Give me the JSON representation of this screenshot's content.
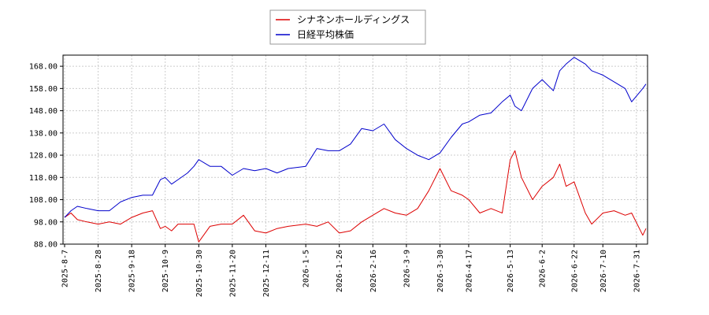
{
  "chart_data": {
    "type": "line",
    "title": "",
    "xlabel": "",
    "ylabel": "",
    "ylim": [
      88,
      173
    ],
    "yticks": [
      "88.00",
      "98.00",
      "108.00",
      "118.00",
      "128.00",
      "138.00",
      "148.00",
      "158.00",
      "168.00"
    ],
    "xticks": [
      "2025-8-7",
      "2025-8-28",
      "2025-9-18",
      "2025-10-9",
      "2025-10-30",
      "2025-11-20",
      "2025-12-11",
      "2026-1-5",
      "2026-1-26",
      "2026-2-16",
      "2026-3-9",
      "2026-3-30",
      "2026-4-17",
      "2026-5-13",
      "2026-6-2",
      "2026-6-22",
      "2026-7-10",
      "2026-7-31"
    ],
    "grid": true,
    "legend_position": "top-center",
    "series": [
      {
        "name": "シナネンホールディングス",
        "color": "#dd0000",
        "points": [
          [
            "2025-8-7",
            100
          ],
          [
            "2025-8-11",
            102
          ],
          [
            "2025-8-15",
            99
          ],
          [
            "2025-8-21",
            98
          ],
          [
            "2025-8-28",
            97
          ],
          [
            "2025-9-4",
            98
          ],
          [
            "2025-9-11",
            97
          ],
          [
            "2025-9-18",
            100
          ],
          [
            "2025-9-25",
            102
          ],
          [
            "2025-10-1",
            103
          ],
          [
            "2025-10-6",
            95
          ],
          [
            "2025-10-9",
            96
          ],
          [
            "2025-10-13",
            94
          ],
          [
            "2025-10-17",
            97
          ],
          [
            "2025-10-23",
            97
          ],
          [
            "2025-10-27",
            97
          ],
          [
            "2025-10-30",
            89
          ],
          [
            "2025-11-6",
            96
          ],
          [
            "2025-11-13",
            97
          ],
          [
            "2025-11-20",
            97
          ],
          [
            "2025-11-27",
            101
          ],
          [
            "2025-12-4",
            94
          ],
          [
            "2025-12-11",
            93
          ],
          [
            "2025-12-18",
            95
          ],
          [
            "2025-12-25",
            96
          ],
          [
            "2026-1-5",
            97
          ],
          [
            "2026-1-12",
            96
          ],
          [
            "2026-1-19",
            98
          ],
          [
            "2026-1-26",
            93
          ],
          [
            "2026-2-2",
            94
          ],
          [
            "2026-2-9",
            98
          ],
          [
            "2026-2-16",
            101
          ],
          [
            "2026-2-23",
            104
          ],
          [
            "2026-3-2",
            102
          ],
          [
            "2026-3-9",
            101
          ],
          [
            "2026-3-16",
            104
          ],
          [
            "2026-3-23",
            112
          ],
          [
            "2026-3-30",
            122
          ],
          [
            "2026-4-6",
            112
          ],
          [
            "2026-4-13",
            110
          ],
          [
            "2026-4-17",
            108
          ],
          [
            "2026-4-24",
            102
          ],
          [
            "2026-5-1",
            104
          ],
          [
            "2026-5-8",
            102
          ],
          [
            "2026-5-13",
            126
          ],
          [
            "2026-5-16",
            130
          ],
          [
            "2026-5-20",
            118
          ],
          [
            "2026-5-27",
            108
          ],
          [
            "2026-6-2",
            114
          ],
          [
            "2026-6-9",
            118
          ],
          [
            "2026-6-13",
            124
          ],
          [
            "2026-6-17",
            114
          ],
          [
            "2026-6-22",
            116
          ],
          [
            "2026-6-29",
            102
          ],
          [
            "2026-7-3",
            97
          ],
          [
            "2026-7-10",
            102
          ],
          [
            "2026-7-17",
            103
          ],
          [
            "2026-7-24",
            101
          ],
          [
            "2026-7-28",
            102
          ],
          [
            "2026-8-4",
            92
          ],
          [
            "2026-8-6",
            95
          ]
        ]
      },
      {
        "name": "日経平均株価",
        "color": "#0000cc",
        "points": [
          [
            "2025-8-7",
            100
          ],
          [
            "2025-8-11",
            103
          ],
          [
            "2025-8-15",
            105
          ],
          [
            "2025-8-21",
            104
          ],
          [
            "2025-8-28",
            103
          ],
          [
            "2025-9-4",
            103
          ],
          [
            "2025-9-11",
            107
          ],
          [
            "2025-9-18",
            109
          ],
          [
            "2025-9-25",
            110
          ],
          [
            "2025-10-1",
            110
          ],
          [
            "2025-10-6",
            117
          ],
          [
            "2025-10-9",
            118
          ],
          [
            "2025-10-13",
            115
          ],
          [
            "2025-10-17",
            117
          ],
          [
            "2025-10-23",
            120
          ],
          [
            "2025-10-27",
            123
          ],
          [
            "2025-10-30",
            126
          ],
          [
            "2025-11-6",
            123
          ],
          [
            "2025-11-13",
            123
          ],
          [
            "2025-11-20",
            119
          ],
          [
            "2025-11-27",
            122
          ],
          [
            "2025-12-4",
            121
          ],
          [
            "2025-12-11",
            122
          ],
          [
            "2025-12-18",
            120
          ],
          [
            "2025-12-25",
            122
          ],
          [
            "2026-1-5",
            123
          ],
          [
            "2026-1-12",
            131
          ],
          [
            "2026-1-19",
            130
          ],
          [
            "2026-1-26",
            130
          ],
          [
            "2026-2-2",
            133
          ],
          [
            "2026-2-9",
            140
          ],
          [
            "2026-2-16",
            139
          ],
          [
            "2026-2-23",
            142
          ],
          [
            "2026-3-2",
            135
          ],
          [
            "2026-3-9",
            131
          ],
          [
            "2026-3-16",
            128
          ],
          [
            "2026-3-23",
            126
          ],
          [
            "2026-3-30",
            129
          ],
          [
            "2026-4-6",
            136
          ],
          [
            "2026-4-13",
            142
          ],
          [
            "2026-4-17",
            143
          ],
          [
            "2026-4-24",
            146
          ],
          [
            "2026-5-1",
            147
          ],
          [
            "2026-5-8",
            152
          ],
          [
            "2026-5-13",
            155
          ],
          [
            "2026-5-16",
            150
          ],
          [
            "2026-5-20",
            148
          ],
          [
            "2026-5-27",
            158
          ],
          [
            "2026-6-2",
            162
          ],
          [
            "2026-6-9",
            157
          ],
          [
            "2026-6-13",
            166
          ],
          [
            "2026-6-17",
            169
          ],
          [
            "2026-6-22",
            172
          ],
          [
            "2026-6-29",
            169
          ],
          [
            "2026-7-3",
            166
          ],
          [
            "2026-7-10",
            164
          ],
          [
            "2026-7-17",
            161
          ],
          [
            "2026-7-24",
            158
          ],
          [
            "2026-7-28",
            152
          ],
          [
            "2026-8-4",
            158
          ],
          [
            "2026-8-6",
            160
          ]
        ]
      }
    ]
  }
}
